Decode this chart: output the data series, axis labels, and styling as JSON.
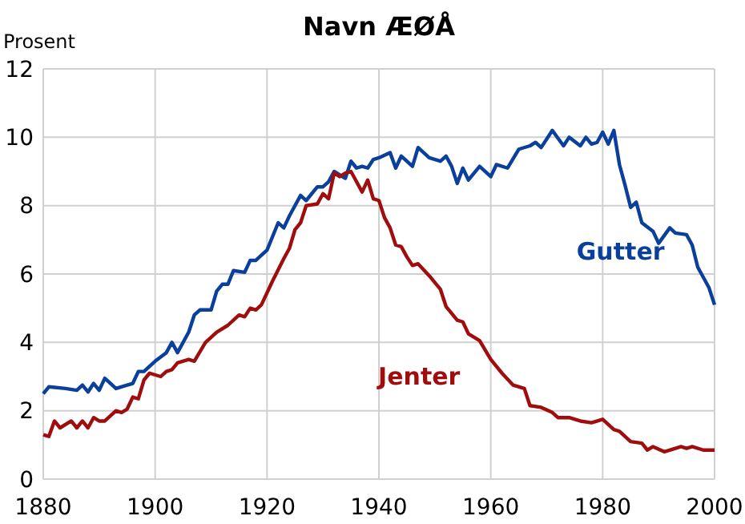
{
  "chart_data": {
    "type": "line",
    "title": "Navn ÆØÅ",
    "ylabel": "Prosent",
    "xlim": [
      1880,
      2000
    ],
    "xticks": [
      1880,
      1900,
      1920,
      1940,
      1960,
      1980,
      2000
    ],
    "ylim": [
      0,
      12
    ],
    "yticks": [
      0,
      2,
      4,
      6,
      8,
      10,
      12
    ],
    "grid": true,
    "legend": false,
    "line_style": "solid",
    "marker": "none",
    "series": [
      {
        "name": "Gutter",
        "color": "#0a3f9c",
        "x": [
          1880,
          1881,
          1884,
          1886,
          1887,
          1888,
          1889,
          1890,
          1891,
          1893,
          1895,
          1896,
          1897,
          1898,
          1900,
          1902,
          1903,
          1904,
          1906,
          1907,
          1908,
          1910,
          1911,
          1912,
          1913,
          1914,
          1916,
          1917,
          1918,
          1920,
          1922,
          1923,
          1924,
          1926,
          1927,
          1929,
          1930,
          1931,
          1932,
          1934,
          1935,
          1936,
          1937,
          1938,
          1939,
          1940,
          1942,
          1943,
          1944,
          1946,
          1947,
          1949,
          1951,
          1952,
          1953,
          1954,
          1955,
          1956,
          1958,
          1960,
          1961,
          1963,
          1965,
          1967,
          1968,
          1969,
          1971,
          1973,
          1974,
          1976,
          1977,
          1978,
          1979,
          1980,
          1981,
          1982,
          1983,
          1984,
          1985,
          1986,
          1987,
          1989,
          1990,
          1992,
          1993,
          1995,
          1996,
          1997,
          1998,
          1999,
          2000
        ],
        "values": [
          2.5,
          2.7,
          2.65,
          2.6,
          2.75,
          2.55,
          2.8,
          2.6,
          2.95,
          2.65,
          2.75,
          2.8,
          3.15,
          3.15,
          3.45,
          3.7,
          4.0,
          3.7,
          4.3,
          4.8,
          4.95,
          4.95,
          5.5,
          5.7,
          5.7,
          6.1,
          6.05,
          6.4,
          6.4,
          6.7,
          7.5,
          7.35,
          7.7,
          8.3,
          8.15,
          8.55,
          8.55,
          8.7,
          9.0,
          8.8,
          9.3,
          9.1,
          9.15,
          9.1,
          9.35,
          9.4,
          9.55,
          9.1,
          9.45,
          9.15,
          9.7,
          9.4,
          9.3,
          9.45,
          9.15,
          8.65,
          9.1,
          8.75,
          9.15,
          8.85,
          9.2,
          9.1,
          9.65,
          9.75,
          9.85,
          9.7,
          10.2,
          9.75,
          10.0,
          9.75,
          10.0,
          9.8,
          9.85,
          10.15,
          9.8,
          10.2,
          9.2,
          8.6,
          7.95,
          8.1,
          7.5,
          7.25,
          6.9,
          7.35,
          7.2,
          7.15,
          6.85,
          6.2,
          5.9,
          5.6,
          5.1
        ]
      },
      {
        "name": "Jenter",
        "color": "#a00d0d",
        "x": [
          1880,
          1881,
          1882,
          1883,
          1885,
          1886,
          1887,
          1888,
          1889,
          1890,
          1891,
          1893,
          1894,
          1895,
          1896,
          1897,
          1898,
          1899,
          1901,
          1902,
          1903,
          1904,
          1906,
          1907,
          1909,
          1911,
          1913,
          1915,
          1916,
          1917,
          1918,
          1919,
          1921,
          1923,
          1924,
          1925,
          1926,
          1927,
          1929,
          1930,
          1931,
          1932,
          1933,
          1934,
          1935,
          1936,
          1937,
          1938,
          1939,
          1940,
          1941,
          1942,
          1943,
          1944,
          1945,
          1946,
          1947,
          1949,
          1951,
          1952,
          1954,
          1955,
          1956,
          1958,
          1960,
          1962,
          1964,
          1966,
          1967,
          1969,
          1971,
          1972,
          1974,
          1976,
          1978,
          1980,
          1982,
          1983,
          1985,
          1987,
          1988,
          1989,
          1991,
          1993,
          1994,
          1995,
          1996,
          1998,
          2000
        ],
        "values": [
          1.3,
          1.25,
          1.7,
          1.5,
          1.7,
          1.5,
          1.7,
          1.5,
          1.8,
          1.7,
          1.7,
          2.0,
          1.95,
          2.05,
          2.4,
          2.35,
          2.9,
          3.1,
          3.0,
          3.15,
          3.2,
          3.4,
          3.5,
          3.45,
          4.0,
          4.3,
          4.5,
          4.8,
          4.75,
          5.0,
          4.95,
          5.1,
          5.8,
          6.45,
          6.75,
          7.3,
          7.5,
          8.0,
          8.05,
          8.35,
          8.2,
          8.95,
          8.85,
          8.95,
          9.0,
          8.7,
          8.4,
          8.75,
          8.2,
          8.15,
          7.65,
          7.35,
          6.85,
          6.8,
          6.5,
          6.25,
          6.3,
          5.95,
          5.55,
          5.05,
          4.65,
          4.6,
          4.25,
          4.05,
          3.5,
          3.1,
          2.75,
          2.65,
          2.15,
          2.1,
          1.95,
          1.8,
          1.8,
          1.7,
          1.65,
          1.75,
          1.45,
          1.4,
          1.1,
          1.05,
          0.85,
          0.95,
          0.8,
          0.9,
          0.95,
          0.9,
          0.95,
          0.85,
          0.85
        ]
      }
    ]
  }
}
